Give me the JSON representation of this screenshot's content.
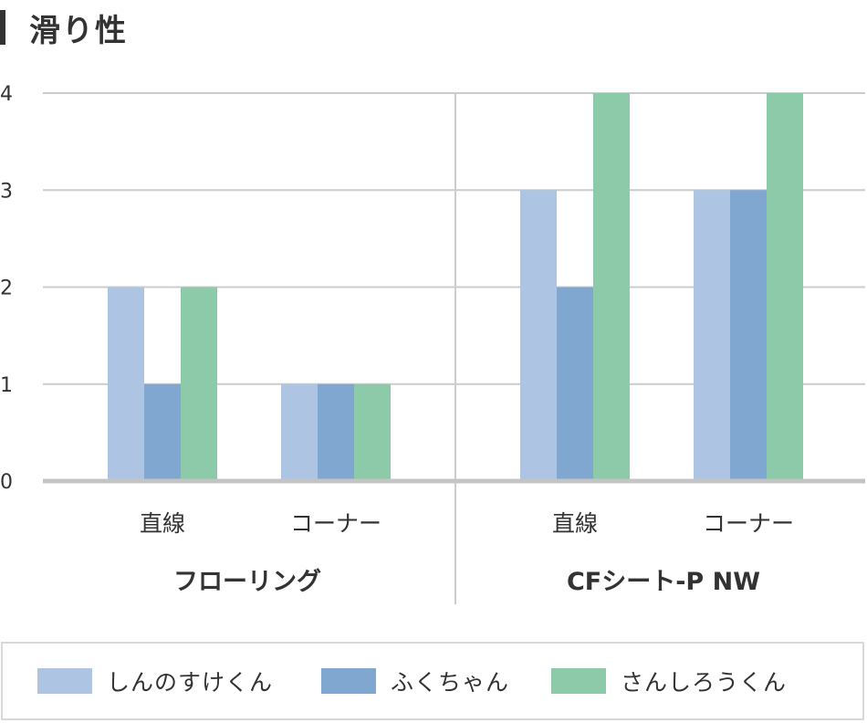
{
  "title": "滑り性",
  "chart_data": {
    "type": "bar",
    "title": "滑り性",
    "groups": [
      {
        "label": "フローリング",
        "categories": [
          "直線",
          "コーナー"
        ]
      },
      {
        "label": "CFシート-P NW",
        "categories": [
          "直線",
          "コーナー"
        ]
      }
    ],
    "categories": [
      "直線",
      "コーナー",
      "直線",
      "コーナー"
    ],
    "series": [
      {
        "name": "しんのすけくん",
        "color": "#adc4e2",
        "values": [
          2,
          1,
          3,
          3
        ]
      },
      {
        "name": "ふくちゃん",
        "color": "#7fa7d0",
        "values": [
          1,
          1,
          2,
          3
        ]
      },
      {
        "name": "さんしろうくん",
        "color": "#8dcaa9",
        "values": [
          2,
          1,
          4,
          4
        ]
      }
    ],
    "ylim": [
      0,
      4
    ],
    "yticks": [
      "0",
      "1",
      "2",
      "3",
      "4"
    ],
    "grid": true,
    "legend_position": "bottom"
  }
}
